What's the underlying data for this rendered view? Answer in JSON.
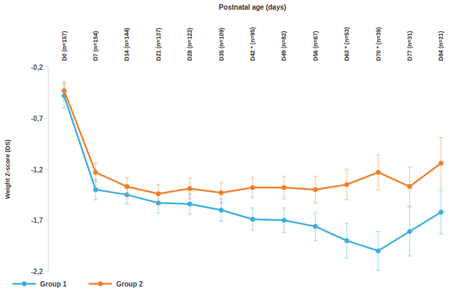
{
  "chart_data": {
    "type": "line",
    "title": "Postnatal age (days)",
    "y_label": "Weight Z-score (DS)",
    "categories": [
      "D0 (n=157)",
      "D7 (n=154)",
      "D14 (n=144)",
      "D21 (n=137)",
      "D28 (n=122)",
      "D35 (n=109)",
      "D42 * (n=95)",
      "D49 (n=82)",
      "D56 (n=67)",
      "D63 * (n=53)",
      "D70 * (n=39)",
      "D77 (n=31)",
      "D84 (n=21)"
    ],
    "series": [
      {
        "name": "Group 1",
        "color": "#3aaee0",
        "marker": "circle",
        "line_style": "solid",
        "values": [
          -0.48,
          -1.4,
          -1.45,
          -1.53,
          -1.54,
          -1.6,
          -1.69,
          -1.7,
          -1.76,
          -1.9,
          -2.0,
          -1.81,
          -1.62
        ],
        "errors": [
          0.12,
          0.1,
          0.09,
          0.1,
          0.1,
          0.11,
          0.11,
          0.12,
          0.14,
          0.17,
          0.19,
          0.24,
          0.21
        ]
      },
      {
        "name": "Group 2",
        "color": "#f07f2a",
        "marker": "circle",
        "line_style": "solid",
        "values": [
          -0.43,
          -1.23,
          -1.37,
          -1.44,
          -1.39,
          -1.43,
          -1.38,
          -1.38,
          -1.4,
          -1.35,
          -1.23,
          -1.37,
          -1.14
        ],
        "errors": [
          0.09,
          0.09,
          0.09,
          0.09,
          0.1,
          0.1,
          0.1,
          0.11,
          0.13,
          0.15,
          0.17,
          0.19,
          0.25
        ]
      }
    ],
    "ylim": [
      -2.2,
      -0.2
    ],
    "yticks": [
      {
        "value": -0.2,
        "label": "-0,2"
      },
      {
        "value": -0.7,
        "label": "-0,7"
      },
      {
        "value": -1.2,
        "label": "-1,2"
      },
      {
        "value": -1.7,
        "label": "-1,7"
      },
      {
        "value": -2.2,
        "label": "-2,2"
      }
    ],
    "grid": false,
    "legend": "bottom-left"
  }
}
